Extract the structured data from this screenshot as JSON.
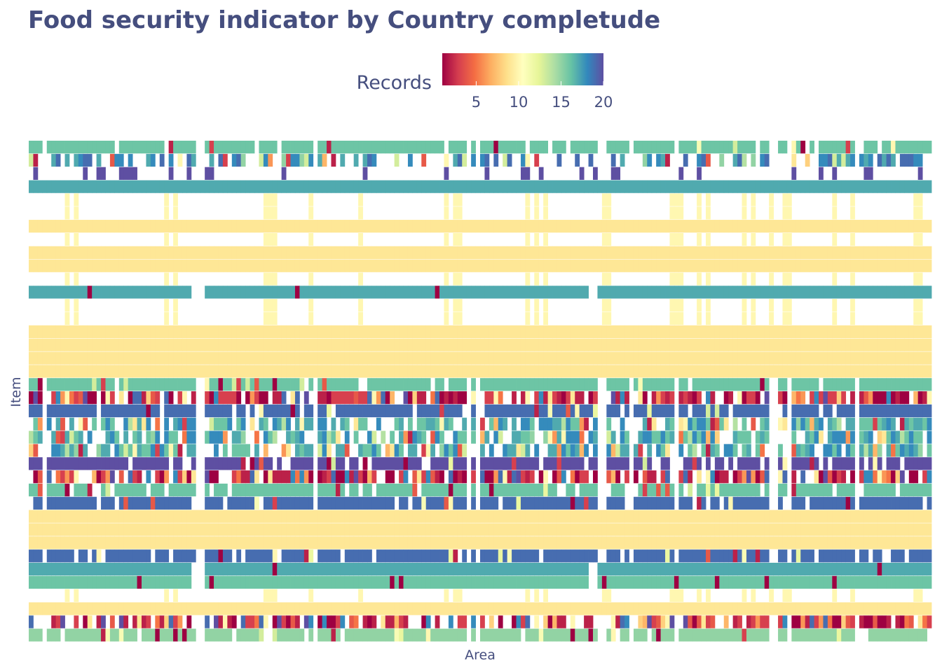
{
  "chart_data": {
    "type": "heatmap",
    "title": "Food security indicator by Country completude",
    "xlabel": "Area",
    "ylabel": "Item",
    "x_tick_labels_visible": false,
    "y_tick_labels_visible": false,
    "n_areas": 200,
    "n_items": 38,
    "legend": {
      "title": "Records",
      "ticks": [
        5,
        10,
        15,
        20
      ],
      "range": [
        1,
        20
      ],
      "palette": "Spectral",
      "placement": "top-center"
    },
    "text_color": "#454e7e",
    "rows": [
      {
        "pattern": "hi_gaps",
        "value": 16,
        "fill": 0.93
      },
      {
        "pattern": "noisy",
        "value": 18,
        "fill": 0.6
      },
      {
        "pattern": "sparse",
        "value": 20,
        "fill": 0.12
      },
      {
        "pattern": "solid",
        "value": 17
      },
      {
        "pattern": "blank_cols",
        "value": 10
      },
      {
        "pattern": "blank_cols",
        "value": 10
      },
      {
        "pattern": "solid",
        "value": 9
      },
      {
        "pattern": "blank_cols",
        "value": 10
      },
      {
        "pattern": "solid",
        "value": 9
      },
      {
        "pattern": "solid",
        "value": 9
      },
      {
        "pattern": "blank_cols",
        "value": 10
      },
      {
        "pattern": "solid_gap",
        "value": 17
      },
      {
        "pattern": "blank_cols",
        "value": 10
      },
      {
        "pattern": "blank_cols",
        "value": 10
      },
      {
        "pattern": "solid",
        "value": 9
      },
      {
        "pattern": "solid",
        "value": 9
      },
      {
        "pattern": "solid",
        "value": 9
      },
      {
        "pattern": "solid",
        "value": 9
      },
      {
        "pattern": "hi_gaps",
        "value": 16,
        "fill": 0.95
      },
      {
        "pattern": "noisy_low",
        "value": 3,
        "fill": 0.85
      },
      {
        "pattern": "hi_gaps",
        "value": 19,
        "fill": 0.92
      },
      {
        "pattern": "noisy",
        "value": 17,
        "fill": 0.75
      },
      {
        "pattern": "noisy",
        "value": 17,
        "fill": 0.72
      },
      {
        "pattern": "noisy",
        "value": 17,
        "fill": 0.8
      },
      {
        "pattern": "hi_gaps",
        "value": 20,
        "fill": 0.85
      },
      {
        "pattern": "noisy_low",
        "value": 3,
        "fill": 0.8
      },
      {
        "pattern": "hi_gaps",
        "value": 16,
        "fill": 0.9
      },
      {
        "pattern": "hi_gaps",
        "value": 19,
        "fill": 0.9
      },
      {
        "pattern": "solid",
        "value": 9
      },
      {
        "pattern": "solid",
        "value": 9
      },
      {
        "pattern": "solid",
        "value": 9
      },
      {
        "pattern": "hi_gaps",
        "value": 19,
        "fill": 0.9
      },
      {
        "pattern": "solid_gap",
        "value": 17
      },
      {
        "pattern": "solid_gap",
        "value": 16
      },
      {
        "pattern": "blank_cols",
        "value": 10
      },
      {
        "pattern": "solid",
        "value": 9
      },
      {
        "pattern": "noisy_low",
        "value": 4,
        "fill": 0.75
      },
      {
        "pattern": "hi_gaps",
        "value": 15,
        "fill": 0.92
      }
    ]
  }
}
